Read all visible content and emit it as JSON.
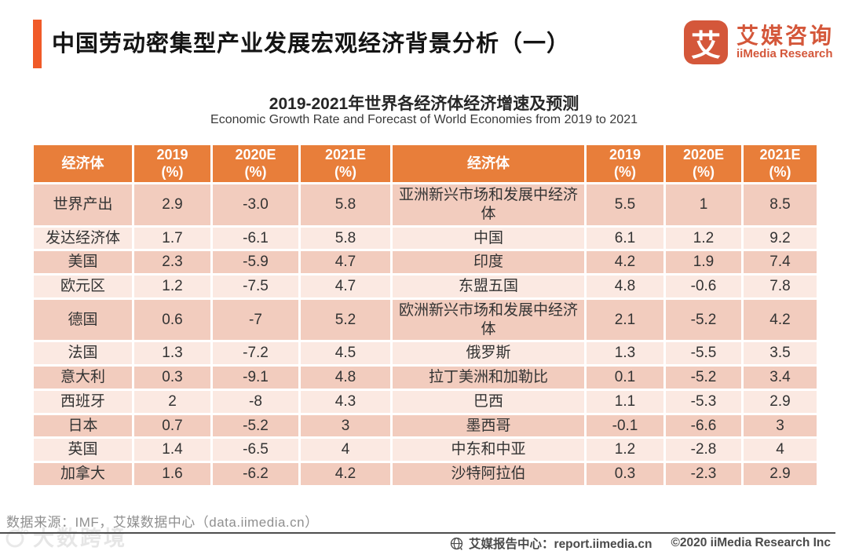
{
  "header": {
    "title": "中国劳动密集型产业发展宏观经济背景分析（一）",
    "logo": {
      "glyph": "艾",
      "name_zh": "艾媒咨询",
      "name_en": "iiMedia Research"
    }
  },
  "figure": {
    "title_zh": "2019-2021年世界各经济体经济增速及预测",
    "title_en": "Economic Growth Rate and Forecast of World Economies from 2019 to 2021"
  },
  "table": {
    "header": {
      "economy": "经济体",
      "y2019": "2019",
      "y2020": "2020E",
      "y2021": "2021E",
      "unit": "(%)"
    },
    "rows": [
      {
        "left_economy": "世界产出",
        "left": [
          "2.9",
          "-3.0",
          "5.8"
        ],
        "right_economy": "亚洲新兴市场和发展中经济体",
        "right": [
          "5.5",
          "1",
          "8.5"
        ]
      },
      {
        "left_economy": "发达经济体",
        "left": [
          "1.7",
          "-6.1",
          "5.8"
        ],
        "right_economy": "中国",
        "right": [
          "6.1",
          "1.2",
          "9.2"
        ]
      },
      {
        "left_economy": "美国",
        "left": [
          "2.3",
          "-5.9",
          "4.7"
        ],
        "right_economy": "印度",
        "right": [
          "4.2",
          "1.9",
          "7.4"
        ]
      },
      {
        "left_economy": "欧元区",
        "left": [
          "1.2",
          "-7.5",
          "4.7"
        ],
        "right_economy": "东盟五国",
        "right": [
          "4.8",
          "-0.6",
          "7.8"
        ]
      },
      {
        "left_economy": "德国",
        "left": [
          "0.6",
          "-7",
          "5.2"
        ],
        "right_economy": "欧洲新兴市场和发展中经济体",
        "right": [
          "2.1",
          "-5.2",
          "4.2"
        ]
      },
      {
        "left_economy": "法国",
        "left": [
          "1.3",
          "-7.2",
          "4.5"
        ],
        "right_economy": "俄罗斯",
        "right": [
          "1.3",
          "-5.5",
          "3.5"
        ]
      },
      {
        "left_economy": "意大利",
        "left": [
          "0.3",
          "-9.1",
          "4.8"
        ],
        "right_economy": "拉丁美洲和加勒比",
        "right": [
          "0.1",
          "-5.2",
          "3.4"
        ]
      },
      {
        "left_economy": "西班牙",
        "left": [
          "2",
          "-8",
          "4.3"
        ],
        "right_economy": "巴西",
        "right": [
          "1.1",
          "-5.3",
          "2.9"
        ]
      },
      {
        "left_economy": "日本",
        "left": [
          "0.7",
          "-5.2",
          "3"
        ],
        "right_economy": "墨西哥",
        "right": [
          "-0.1",
          "-6.6",
          "3"
        ]
      },
      {
        "left_economy": "英国",
        "left": [
          "1.4",
          "-6.5",
          "4"
        ],
        "right_economy": "中东和中亚",
        "right": [
          "1.2",
          "-2.8",
          "4"
        ]
      },
      {
        "left_economy": "加拿大",
        "left": [
          "1.6",
          "-6.2",
          "4.2"
        ],
        "right_economy": "沙特阿拉伯",
        "right": [
          "0.3",
          "-2.3",
          "2.9"
        ]
      }
    ]
  },
  "chart_data": {
    "type": "table",
    "title": "2019-2021年世界各经济体经济增速及预测",
    "subtitle": "Economic Growth Rate and Forecast of World Economies from 2019 to 2021",
    "columns": [
      "经济体",
      "2019 (%)",
      "2020E (%)",
      "2021E (%)"
    ],
    "records": [
      [
        "世界产出",
        2.9,
        -3.0,
        5.8
      ],
      [
        "发达经济体",
        1.7,
        -6.1,
        5.8
      ],
      [
        "美国",
        2.3,
        -5.9,
        4.7
      ],
      [
        "欧元区",
        1.2,
        -7.5,
        4.7
      ],
      [
        "德国",
        0.6,
        -7,
        5.2
      ],
      [
        "法国",
        1.3,
        -7.2,
        4.5
      ],
      [
        "意大利",
        0.3,
        -9.1,
        4.8
      ],
      [
        "西班牙",
        2,
        -8,
        4.3
      ],
      [
        "日本",
        0.7,
        -5.2,
        3
      ],
      [
        "英国",
        1.4,
        -6.5,
        4
      ],
      [
        "加拿大",
        1.6,
        -6.2,
        4.2
      ],
      [
        "亚洲新兴市场和发展中经济体",
        5.5,
        1,
        8.5
      ],
      [
        "中国",
        6.1,
        1.2,
        9.2
      ],
      [
        "印度",
        4.2,
        1.9,
        7.4
      ],
      [
        "东盟五国",
        4.8,
        -0.6,
        7.8
      ],
      [
        "欧洲新兴市场和发展中经济体",
        2.1,
        -5.2,
        4.2
      ],
      [
        "俄罗斯",
        1.3,
        -5.5,
        3.5
      ],
      [
        "拉丁美洲和加勒比",
        0.1,
        -5.2,
        3.4
      ],
      [
        "巴西",
        1.1,
        -5.3,
        2.9
      ],
      [
        "墨西哥",
        -0.1,
        -6.6,
        3
      ],
      [
        "中东和中亚",
        1.2,
        -2.8,
        4
      ],
      [
        "沙特阿拉伯",
        0.3,
        -2.3,
        2.9
      ]
    ]
  },
  "footer": {
    "source": "数据来源：IMF，艾媒数据中心（data.iimedia.cn）",
    "report_center": "艾媒报告中心：report.iimedia.cn",
    "copyright": "©2020  iiMedia Research  Inc",
    "watermark": "大数跨境"
  },
  "colors": {
    "accent_orange": "#F05A28",
    "table_header_orange": "#E87E3A",
    "row_dark": "#F2CCBE",
    "row_light": "#FBE9E2",
    "logo_red": "#D4573A"
  }
}
